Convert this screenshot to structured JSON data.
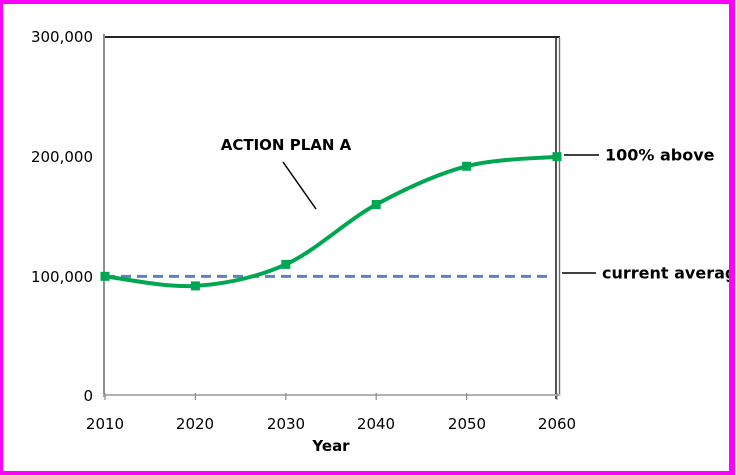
{
  "frame": {
    "color": "#FF00FF"
  },
  "chart_data": {
    "type": "line",
    "title": "",
    "xlabel": "Year",
    "ylabel": "",
    "categories": [
      "2010",
      "2020",
      "2030",
      "2040",
      "2050",
      "2060"
    ],
    "series": [
      {
        "name": "ACTION PLAN A",
        "color": "#00A651",
        "marker": "square",
        "smooth": true,
        "values": [
          100000,
          92000,
          110000,
          160000,
          192000,
          200000
        ]
      }
    ],
    "reference_line": {
      "label": "current average",
      "value": 100000,
      "color": "#5B84C1",
      "style": "dashed"
    },
    "ylim": [
      0,
      300000
    ],
    "y_tick_labels": [
      "300,000",
      "200,000",
      "100,000",
      "0"
    ],
    "grid": false,
    "legend": "none",
    "annotations": [
      {
        "text": "ACTION PLAN A",
        "points_to": "series curve"
      },
      {
        "text": "100% above",
        "points_to": "2060 value of 200,000"
      },
      {
        "text": "current average",
        "points_to": "dashed reference line at 100,000"
      }
    ]
  }
}
